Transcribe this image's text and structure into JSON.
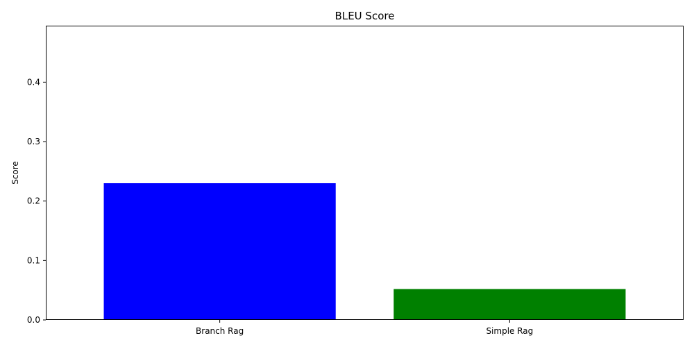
{
  "chart_data": {
    "type": "bar",
    "title": "BLEU Score",
    "xlabel": "",
    "ylabel": "Score",
    "categories": [
      "Branch Rag",
      "Simple Rag"
    ],
    "values": [
      0.23,
      0.052
    ],
    "colors": [
      "#0000ff",
      "#008000"
    ],
    "ylim": [
      0,
      0.495
    ],
    "yticks": [
      0.0,
      0.1,
      0.2,
      0.3,
      0.4
    ],
    "ytick_labels": [
      "0.0",
      "0.1",
      "0.2",
      "0.3",
      "0.4"
    ],
    "grid": false,
    "legend": "none"
  }
}
